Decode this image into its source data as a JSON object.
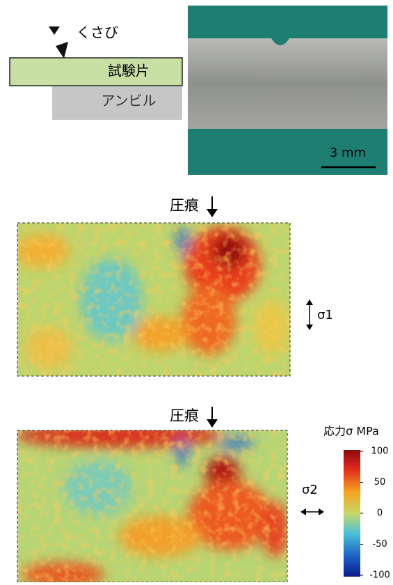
{
  "diagram": {
    "wedge": "くさび",
    "specimen": "試験片",
    "anvil": "アンビル",
    "scale_bar": "3 mm"
  },
  "maps": [
    {
      "indent": "圧痕",
      "stress": "σ1"
    },
    {
      "indent": "圧痕",
      "stress": "σ2"
    }
  ],
  "colorbar": {
    "title": "応力σ MPa",
    "lim": [
      -100,
      100
    ],
    "ticks": [
      100,
      50,
      0,
      -50,
      -100
    ]
  }
}
